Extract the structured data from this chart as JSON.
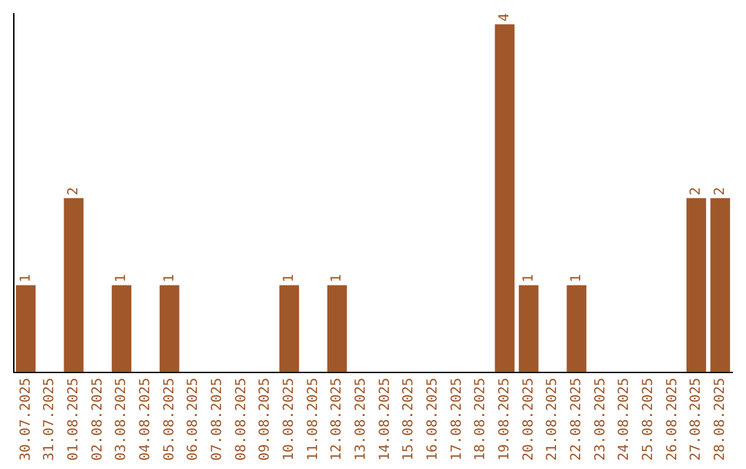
{
  "chart_data": {
    "type": "bar",
    "categories": [
      "30.07.2025",
      "31.07.2025",
      "01.08.2025",
      "02.08.2025",
      "03.08.2025",
      "04.08.2025",
      "05.08.2025",
      "06.08.2025",
      "07.08.2025",
      "08.08.2025",
      "09.08.2025",
      "10.08.2025",
      "11.08.2025",
      "12.08.2025",
      "13.08.2025",
      "14.08.2025",
      "15.08.2025",
      "16.08.2025",
      "17.08.2025",
      "18.08.2025",
      "19.08.2025",
      "20.08.2025",
      "21.08.2025",
      "22.08.2025",
      "23.08.2025",
      "24.08.2025",
      "25.08.2025",
      "26.08.2025",
      "27.08.2025",
      "28.08.2025"
    ],
    "values": [
      1,
      0,
      2,
      0,
      1,
      0,
      1,
      0,
      0,
      0,
      0,
      1,
      0,
      1,
      0,
      0,
      0,
      0,
      0,
      0,
      4,
      1,
      0,
      1,
      0,
      0,
      0,
      0,
      2,
      2
    ],
    "value_labels": [
      "1",
      null,
      "2",
      null,
      "1",
      null,
      "1",
      null,
      null,
      null,
      null,
      "1",
      null,
      "1",
      null,
      null,
      null,
      null,
      null,
      null,
      "4",
      "1",
      null,
      "1",
      null,
      null,
      null,
      null,
      "2",
      "2"
    ],
    "color": "#a0572a",
    "ylim": [
      0,
      4.12
    ],
    "tick_labels": "x",
    "grid": false,
    "legend": false
  }
}
